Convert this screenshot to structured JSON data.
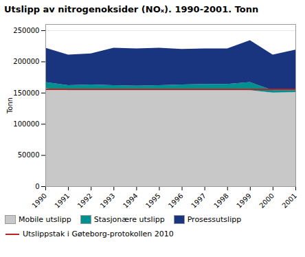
{
  "chart_data": {
    "type": "area",
    "stacked": true,
    "title": "Utslipp av nitrogenoksider (NOₓ). 1990-2001. Tonn",
    "ylabel": "Tonn",
    "x": [
      1990,
      1991,
      1992,
      1993,
      1994,
      1995,
      1996,
      1997,
      1998,
      1999,
      2000,
      2001
    ],
    "series": [
      {
        "name": "Mobile utslipp",
        "color": "#c8c8c8",
        "values": [
          157000,
          154000,
          154000,
          154000,
          154000,
          154000,
          154000,
          154000,
          154000,
          154000,
          150000,
          151000
        ]
      },
      {
        "name": "Stasjonære utslipp",
        "color": "#009090",
        "values": [
          10000,
          8000,
          9000,
          8000,
          7000,
          8000,
          9000,
          10000,
          10000,
          13000,
          4000,
          3000
        ]
      },
      {
        "name": "Prosessutslipp",
        "color": "#1a3580",
        "values": [
          55000,
          49000,
          50000,
          60000,
          60000,
          60000,
          57000,
          57000,
          57000,
          67000,
          57000,
          65000
        ]
      },
      {
        "name": "Utslippstak i Gøteborg-protokollen 2010",
        "color": "#bb2222",
        "type": "line",
        "values": [
          156000,
          156000,
          156000,
          156000,
          156000,
          156000,
          156000,
          156000,
          156000,
          156000,
          156000,
          156000
        ]
      }
    ],
    "xlim": [
      1990,
      2001
    ],
    "xticks": [
      1990,
      1991,
      1992,
      1993,
      1994,
      1995,
      1996,
      1997,
      1998,
      1999,
      2000,
      2001
    ],
    "ylim": [
      0,
      260000
    ],
    "yticks": [
      0,
      50000,
      100000,
      150000,
      200000,
      250000
    ],
    "grid": true,
    "legend": "bottom"
  }
}
